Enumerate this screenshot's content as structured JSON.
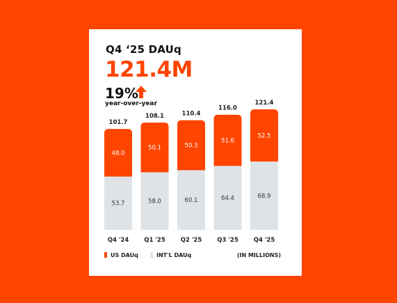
{
  "card": {
    "title": "Q4 ‘25 DAUq",
    "headline": "121.4M",
    "growth_value": "19%",
    "growth_label": "year-over-year"
  },
  "legend": {
    "us_label": "US DAUq",
    "intl_label": "INT'L DAUq",
    "units": "(IN MILLIONS)"
  },
  "colors": {
    "us": "#ff4500",
    "intl": "#dde3e6",
    "arrow": "#ff4500"
  },
  "chart_data": {
    "type": "bar",
    "stacked": true,
    "title": "Q4 ‘25 DAUq",
    "categories": [
      "Q4 '24",
      "Q1 '25",
      "Q2 '25",
      "Q3 '25",
      "Q4 '25"
    ],
    "series": [
      {
        "name": "INT'L DAUq",
        "values": [
          53.7,
          58.0,
          60.1,
          64.4,
          68.9
        ]
      },
      {
        "name": "US DAUq",
        "values": [
          48.0,
          50.1,
          50.3,
          51.6,
          52.5
        ]
      }
    ],
    "totals": [
      "101.7",
      "108.1",
      "110.4",
      "116.0",
      "121.4"
    ],
    "segment_labels": {
      "intl": [
        "53.7",
        "58.0",
        "60.1",
        "64.4",
        "68.9"
      ],
      "us": [
        "48.0",
        "50.1",
        "50.3",
        "51.6",
        "52.5"
      ]
    },
    "grid": false,
    "legend_position": "bottom-left"
  }
}
